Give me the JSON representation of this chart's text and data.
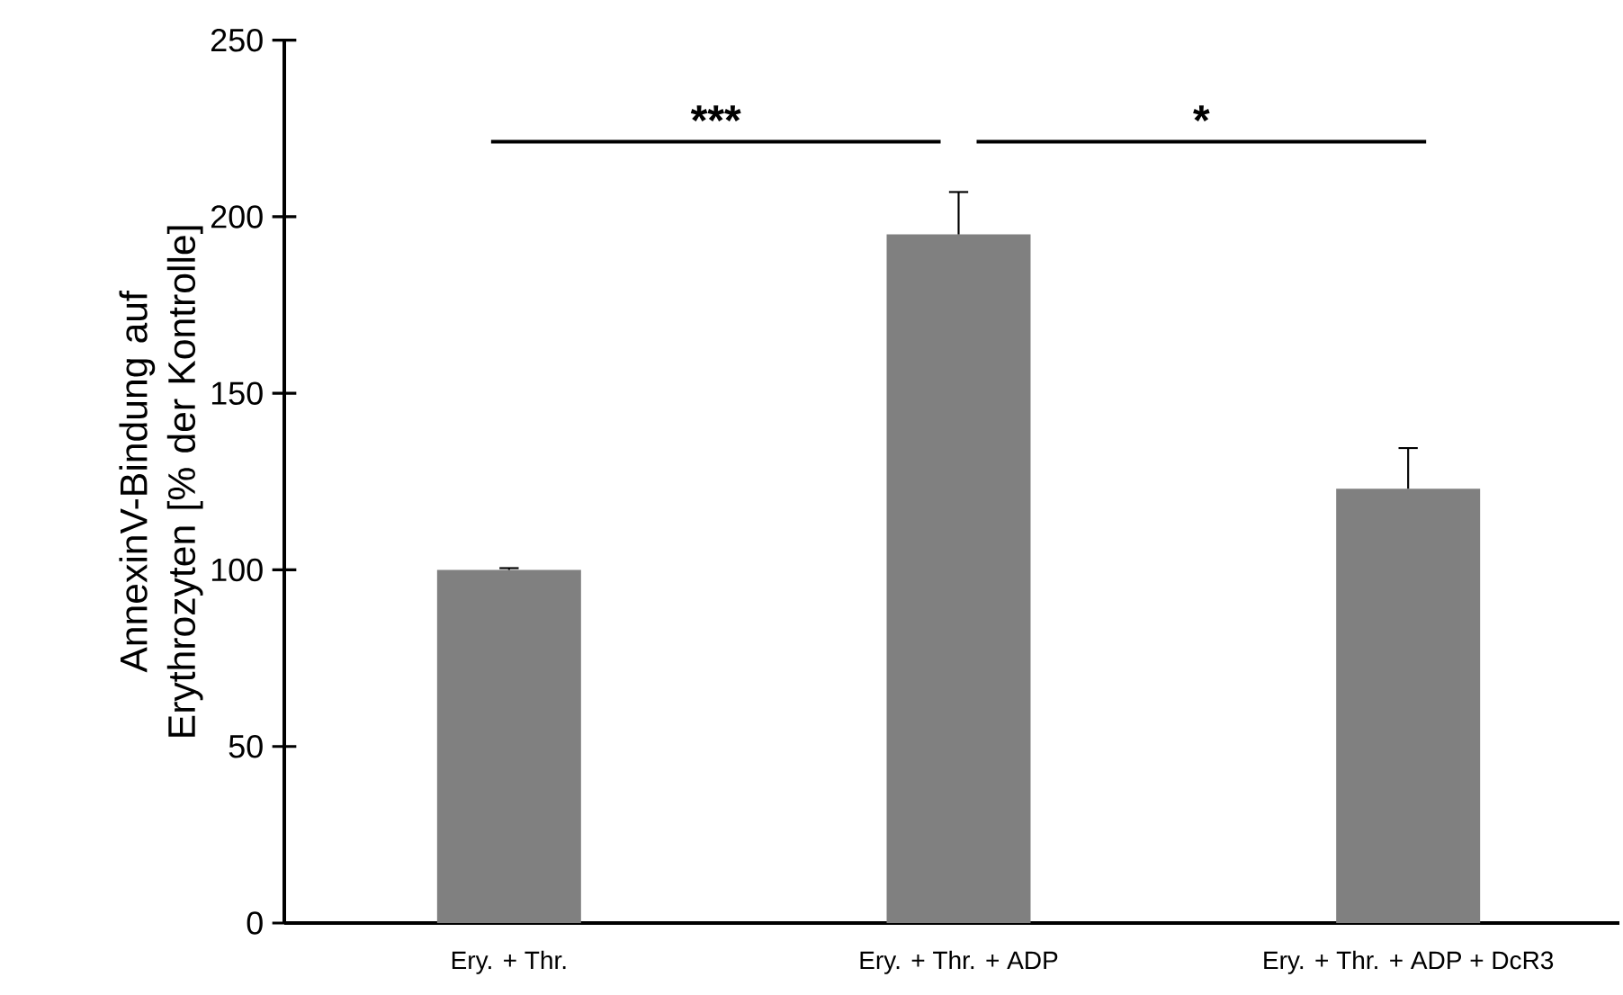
{
  "chart_data": {
    "type": "bar",
    "ylabel": "AnnexinV-Bindung auf Erythrozyten [% der Kontrolle]",
    "categories": [
      "Ery. + Thr.",
      "Ery. + Thr. + ADP",
      "Ery. + Thr. + ADP + DcR3"
    ],
    "values": [
      100,
      195,
      123
    ],
    "errors": [
      0.5,
      12,
      11.5
    ],
    "color": "#808080",
    "ylim": [
      0,
      250
    ],
    "yticks": [
      0,
      50,
      100,
      150,
      200,
      250
    ],
    "annotations": [
      "***",
      "*"
    ],
    "grid": false
  }
}
